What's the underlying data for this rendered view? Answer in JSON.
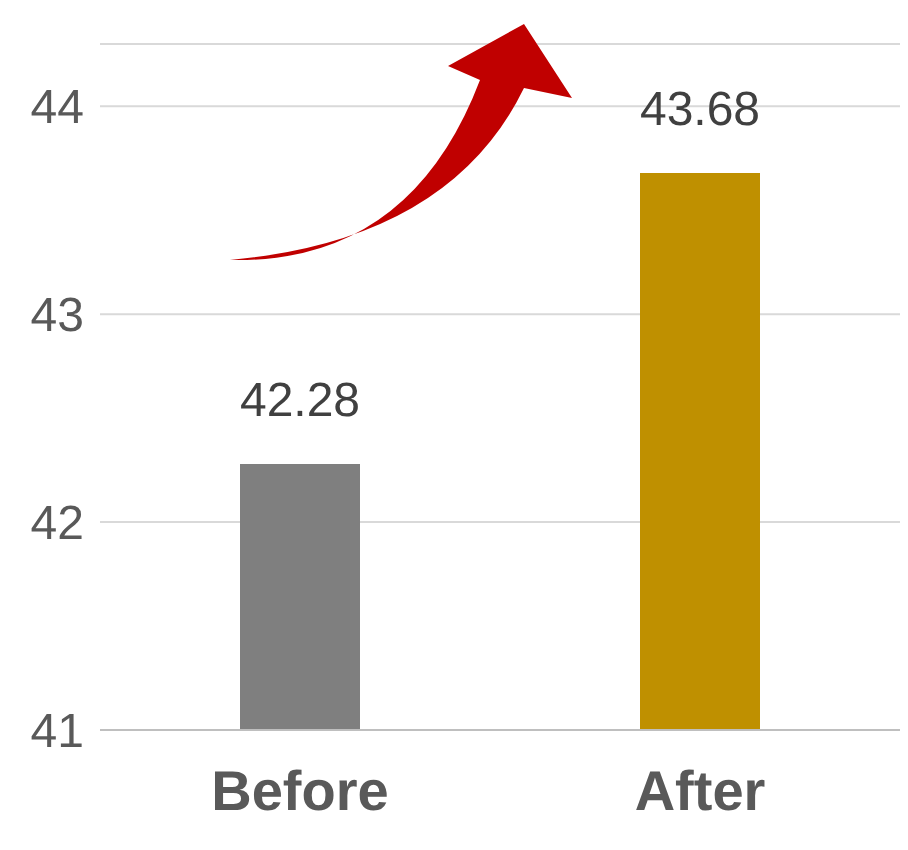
{
  "chart_data": {
    "type": "bar",
    "categories": [
      "Before",
      "After"
    ],
    "colors": [
      "#7f7f7f",
      "#bf9000"
    ],
    "values": [
      42.28,
      43.68
    ],
    "ylim": [
      41,
      44.3
    ],
    "yticks": [
      41,
      42,
      43,
      44
    ],
    "grid": "y",
    "data_labels": true
  }
}
